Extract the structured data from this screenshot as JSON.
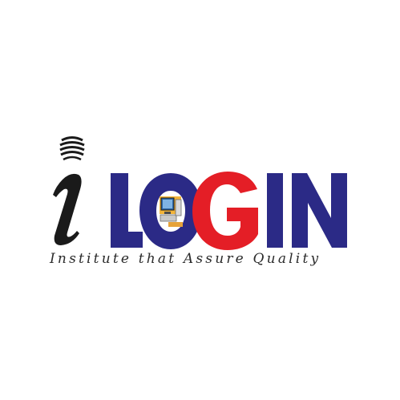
{
  "logo": {
    "letters": {
      "i": "i",
      "L": "L",
      "O": "O",
      "G": "G",
      "I": "I",
      "N": "N"
    },
    "tagline": "Institute that Assure Quality",
    "colors": {
      "navy": "#2b2a86",
      "red": "#e41e26",
      "black": "#1a1a1a",
      "tagline": "#2b2b2b",
      "background": "#ffffff"
    },
    "icons": [
      "globe-icon",
      "computer-icon"
    ]
  }
}
